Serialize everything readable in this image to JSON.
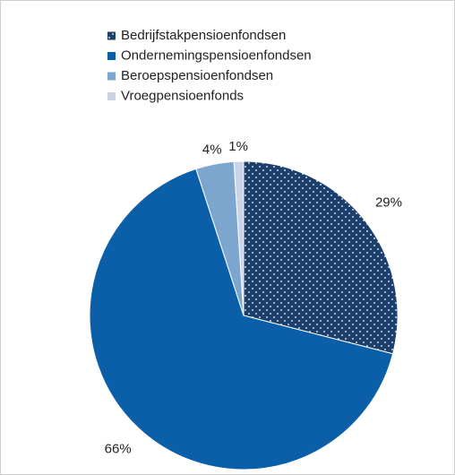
{
  "chart_data": {
    "type": "pie",
    "categories": [
      "Bedrijfstakpensioenfondsen",
      "Ondernemingspensioenfondsen",
      "Beroepspensioenfondsen",
      "Vroegpensioenfonds"
    ],
    "values": [
      29,
      66,
      4,
      1
    ],
    "value_labels": [
      "29%",
      "66%",
      "4%",
      "1%"
    ],
    "colors": [
      "#1c3f6e",
      "#0b5fa8",
      "#7da6cf",
      "#cad4e6"
    ],
    "patterns": [
      "dots",
      null,
      null,
      null
    ],
    "legend": "top"
  }
}
